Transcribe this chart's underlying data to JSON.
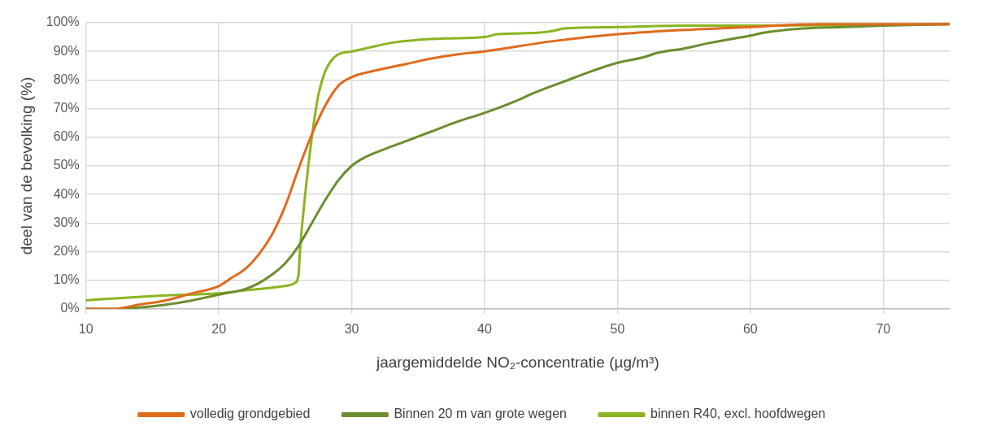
{
  "chart_data": {
    "type": "line",
    "xlabel": "jaargemiddelde NO₂-concentratie (µg/m³)",
    "ylabel": "deel van de bevolking (%)",
    "xlim": [
      10,
      75
    ],
    "xticks": [
      10,
      20,
      30,
      40,
      50,
      60,
      70
    ],
    "ylim": [
      0,
      100
    ],
    "yticks": [
      {
        "value": 0,
        "label": "0%"
      },
      {
        "value": 10,
        "label": "10%"
      },
      {
        "value": 20,
        "label": "20%"
      },
      {
        "value": 30,
        "label": "30%"
      },
      {
        "value": 40,
        "label": "40%"
      },
      {
        "value": 50,
        "label": "50%"
      },
      {
        "value": 60,
        "label": "60%"
      },
      {
        "value": 70,
        "label": "70%"
      },
      {
        "value": 80,
        "label": "80%"
      },
      {
        "value": 90,
        "label": "90%"
      },
      {
        "value": 100,
        "label": "100%"
      }
    ],
    "grid": true,
    "legend": "bottom",
    "marker": "none",
    "line_style": "solid",
    "series": [
      {
        "name": "volledig grondgebied",
        "color": "#e06a1c",
        "x": [
          10,
          12,
          14,
          16,
          18,
          20,
          21,
          22,
          23,
          24,
          25,
          26,
          27,
          28,
          29,
          30,
          32,
          34,
          36,
          38,
          40,
          45,
          50,
          55,
          60,
          65,
          70,
          75
        ],
        "values": [
          0,
          0,
          1.5,
          3,
          5.5,
          8,
          11,
          14,
          19,
          26,
          36,
          49,
          61,
          71,
          78,
          81,
          83.5,
          85.5,
          87.5,
          89,
          90,
          93.5,
          96,
          97.5,
          98.5,
          99.5,
          99.5,
          99.5
        ]
      },
      {
        "name": "Binnen 20 m van grote wegen",
        "color": "#6b8e2e",
        "x": [
          10,
          12,
          14,
          16,
          18,
          20,
          22,
          23,
          24,
          25,
          26,
          27,
          28,
          29,
          30,
          31,
          32,
          34,
          36,
          38,
          40,
          42,
          44,
          46,
          48,
          50,
          52,
          53,
          55,
          57,
          60,
          61,
          64,
          67,
          70,
          75
        ],
        "values": [
          0,
          0,
          0.5,
          1.5,
          3,
          5,
          7,
          9,
          12,
          16,
          22,
          30,
          38,
          45,
          50,
          53,
          55,
          58.5,
          62,
          65.5,
          68.5,
          72,
          76,
          79.5,
          83,
          86,
          88,
          89.5,
          91,
          93,
          95.5,
          96.5,
          98,
          98.5,
          99,
          99.5
        ]
      },
      {
        "name": "binnen R40, excl. hoofdwegen",
        "color": "#8ab520",
        "x": [
          10,
          15,
          20,
          22,
          25,
          25.7,
          26,
          26.1,
          26.5,
          27,
          27.5,
          28,
          28.5,
          29,
          30,
          31,
          33,
          35,
          37,
          40,
          41,
          44,
          45,
          46,
          50,
          55,
          60,
          75
        ],
        "values": [
          3,
          4.5,
          5.5,
          6.5,
          8,
          9,
          12,
          20,
          40,
          60,
          75,
          83,
          87,
          89,
          90,
          91,
          93,
          94,
          94.5,
          95,
          96,
          96.5,
          97,
          98,
          98.5,
          99,
          99,
          99.5
        ]
      }
    ]
  }
}
